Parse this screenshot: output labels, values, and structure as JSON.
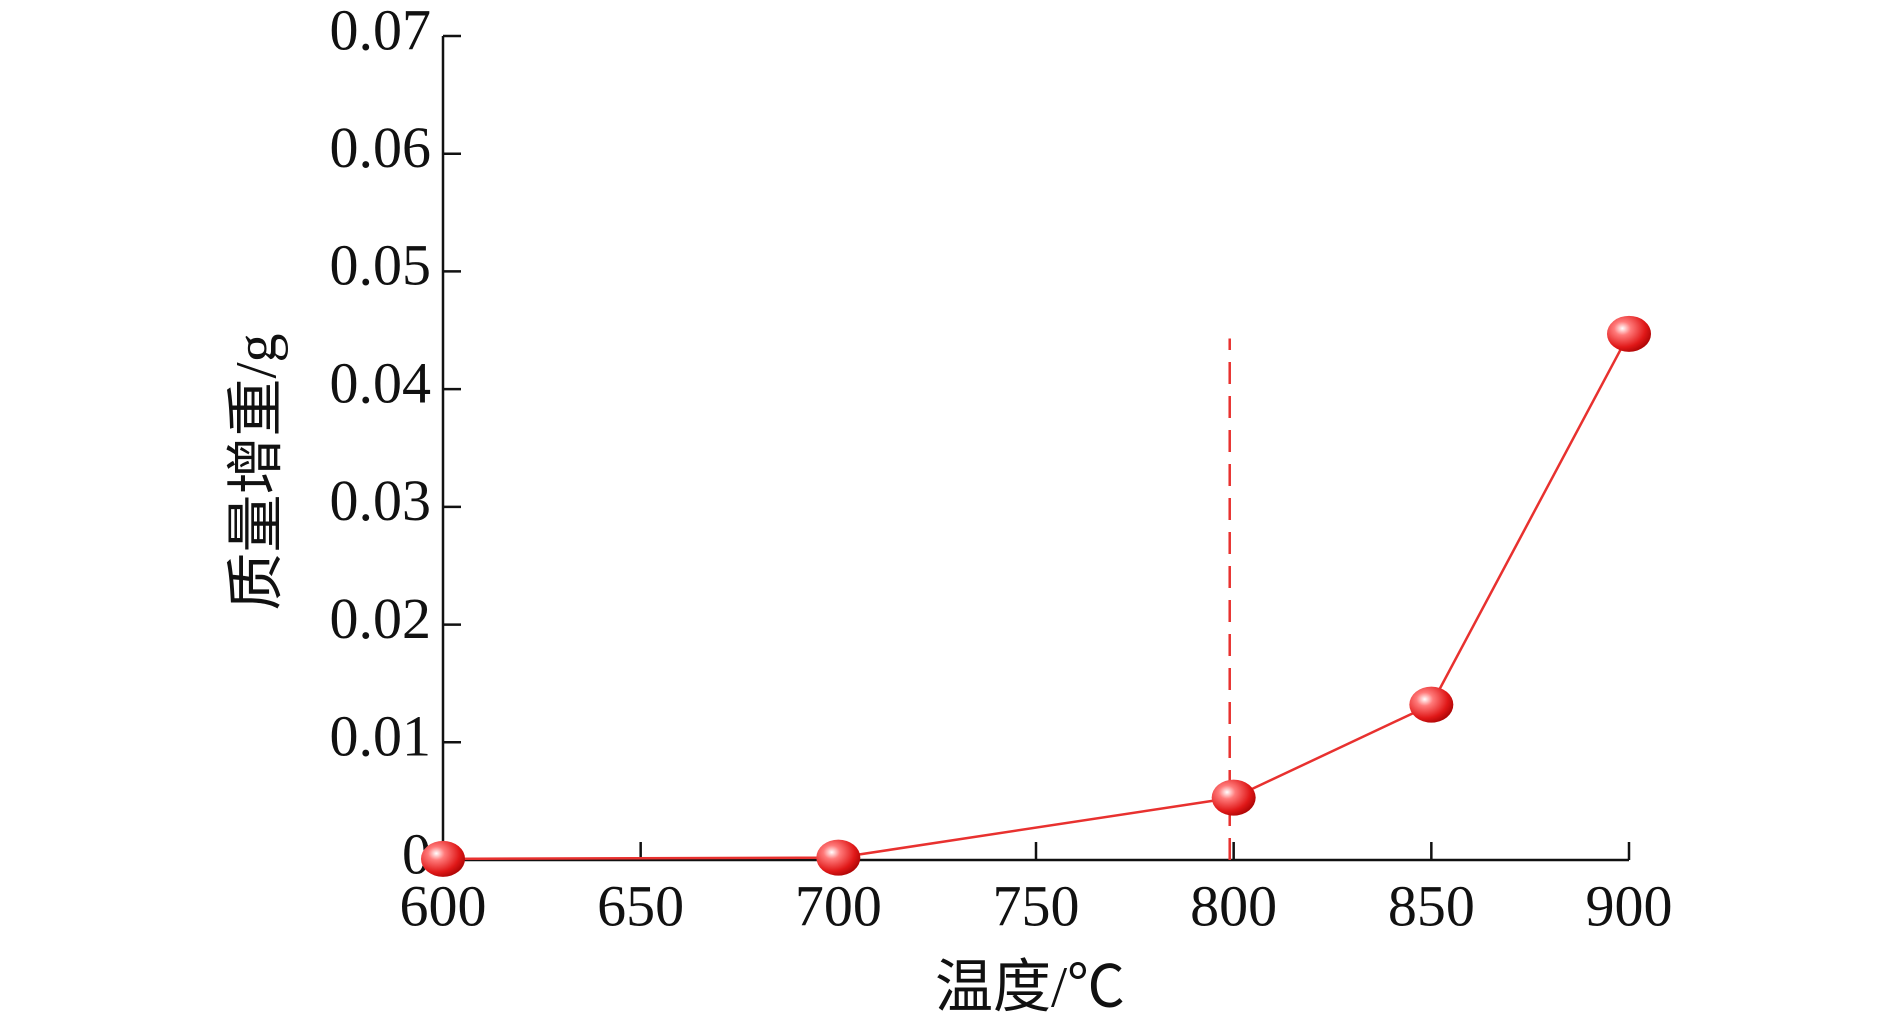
{
  "chart_data": {
    "type": "line",
    "x_label": "温度/℃",
    "y_label": "质量增重/g",
    "x": [
      600,
      700,
      800,
      850,
      900
    ],
    "values": [
      0.0001,
      0.0002,
      0.0053,
      0.0132,
      0.0447
    ],
    "color": "#e8312f",
    "xlim": [
      600,
      900
    ],
    "xticks": [
      600,
      650,
      700,
      750,
      800,
      850,
      900
    ],
    "ylim": [
      0,
      0.07
    ],
    "yticks": [
      0,
      0.01,
      0.02,
      0.03,
      0.04,
      0.05,
      0.06,
      0.07
    ],
    "vline": {
      "x": 799,
      "y": [
        0,
        0.0443
      ],
      "color": "#e8312f",
      "dashed": true
    }
  }
}
